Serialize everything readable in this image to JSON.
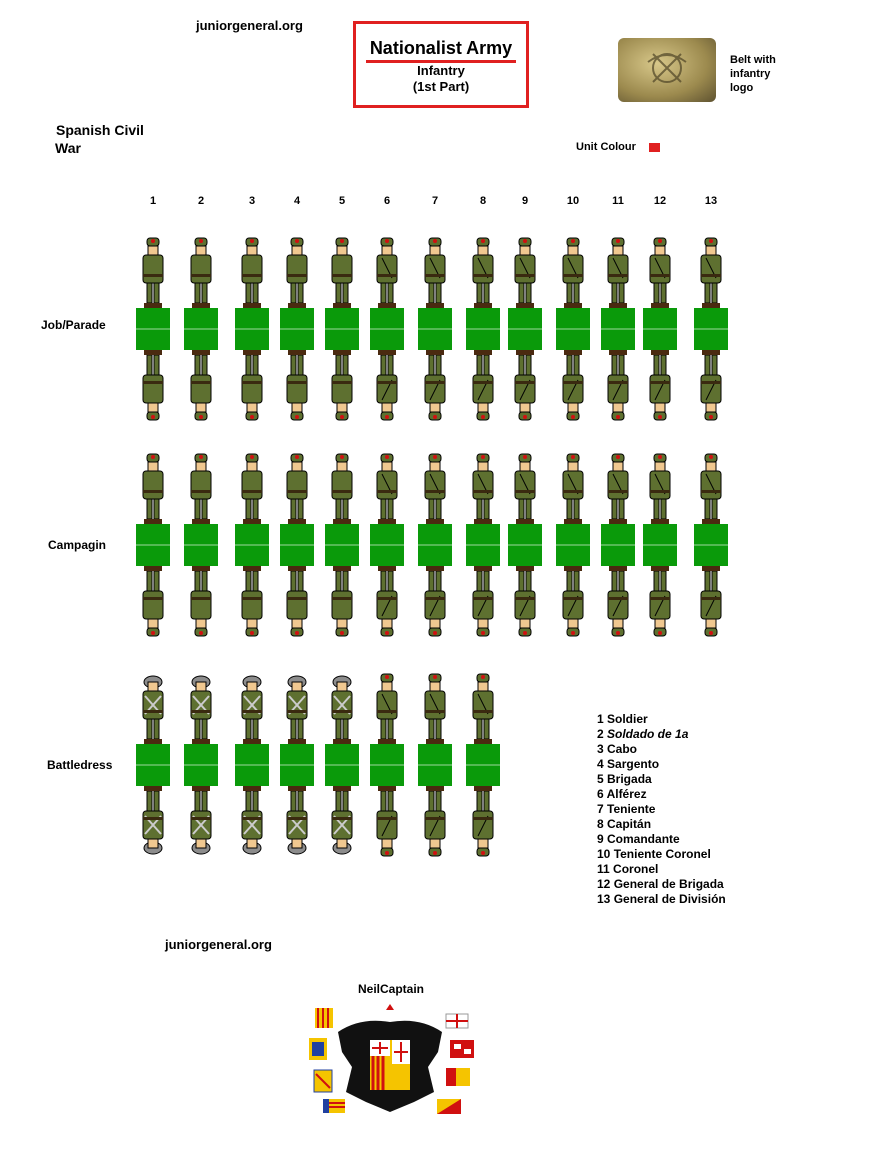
{
  "header": {
    "site_top": "juniorgeneral.org",
    "title": "Nationalist Army",
    "subtitle_line1": "Infantry",
    "subtitle_line2": "(1st Part)",
    "belt_caption": [
      "Belt with",
      "infantry",
      "logo"
    ],
    "war": [
      "Spanish Civil",
      "War"
    ],
    "unit_colour_label": "Unit Colour",
    "unit_colour": "#e02020"
  },
  "columns": [
    "1",
    "2",
    "3",
    "4",
    "5",
    "6",
    "7",
    "8",
    "9",
    "10",
    "11",
    "12",
    "13"
  ],
  "rows": [
    {
      "label": "Job/Parade",
      "count": 13,
      "headgear": "cap"
    },
    {
      "label": "Campagin",
      "count": 13,
      "headgear": "cap"
    },
    {
      "label": "Battledress",
      "count": 8,
      "headgear": "helmet"
    }
  ],
  "colors": {
    "base": "#0a9a0a",
    "uniform": "#5e7030",
    "boots": "#4a2a10",
    "helmet": "#8c8c8c",
    "skin": "#f0c890"
  },
  "legend": [
    {
      "num": "1",
      "label": "Soldier",
      "italic": false
    },
    {
      "num": "2",
      "label": "Soldado de 1a",
      "italic": true
    },
    {
      "num": "3",
      "label": "Cabo",
      "italic": false
    },
    {
      "num": "4",
      "label": "Sargento",
      "italic": false
    },
    {
      "num": "5",
      "label": "Brigada",
      "italic": false
    },
    {
      "num": "6",
      "label": "Alférez",
      "italic": false
    },
    {
      "num": "7",
      "label": "Teniente",
      "italic": false
    },
    {
      "num": "8",
      "label": "Capitán",
      "italic": false
    },
    {
      "num": "9",
      "label": "Comandante",
      "italic": false
    },
    {
      "num": "10",
      "label": "Teniente Coronel",
      "italic": false
    },
    {
      "num": "11",
      "label": "Coronel",
      "italic": false
    },
    {
      "num": "12",
      "label": "General de Brigada",
      "italic": false
    },
    {
      "num": "13",
      "label": "General de División",
      "italic": false
    }
  ],
  "footer": {
    "site": "juniorgeneral.org",
    "author": "NeilCaptain"
  }
}
